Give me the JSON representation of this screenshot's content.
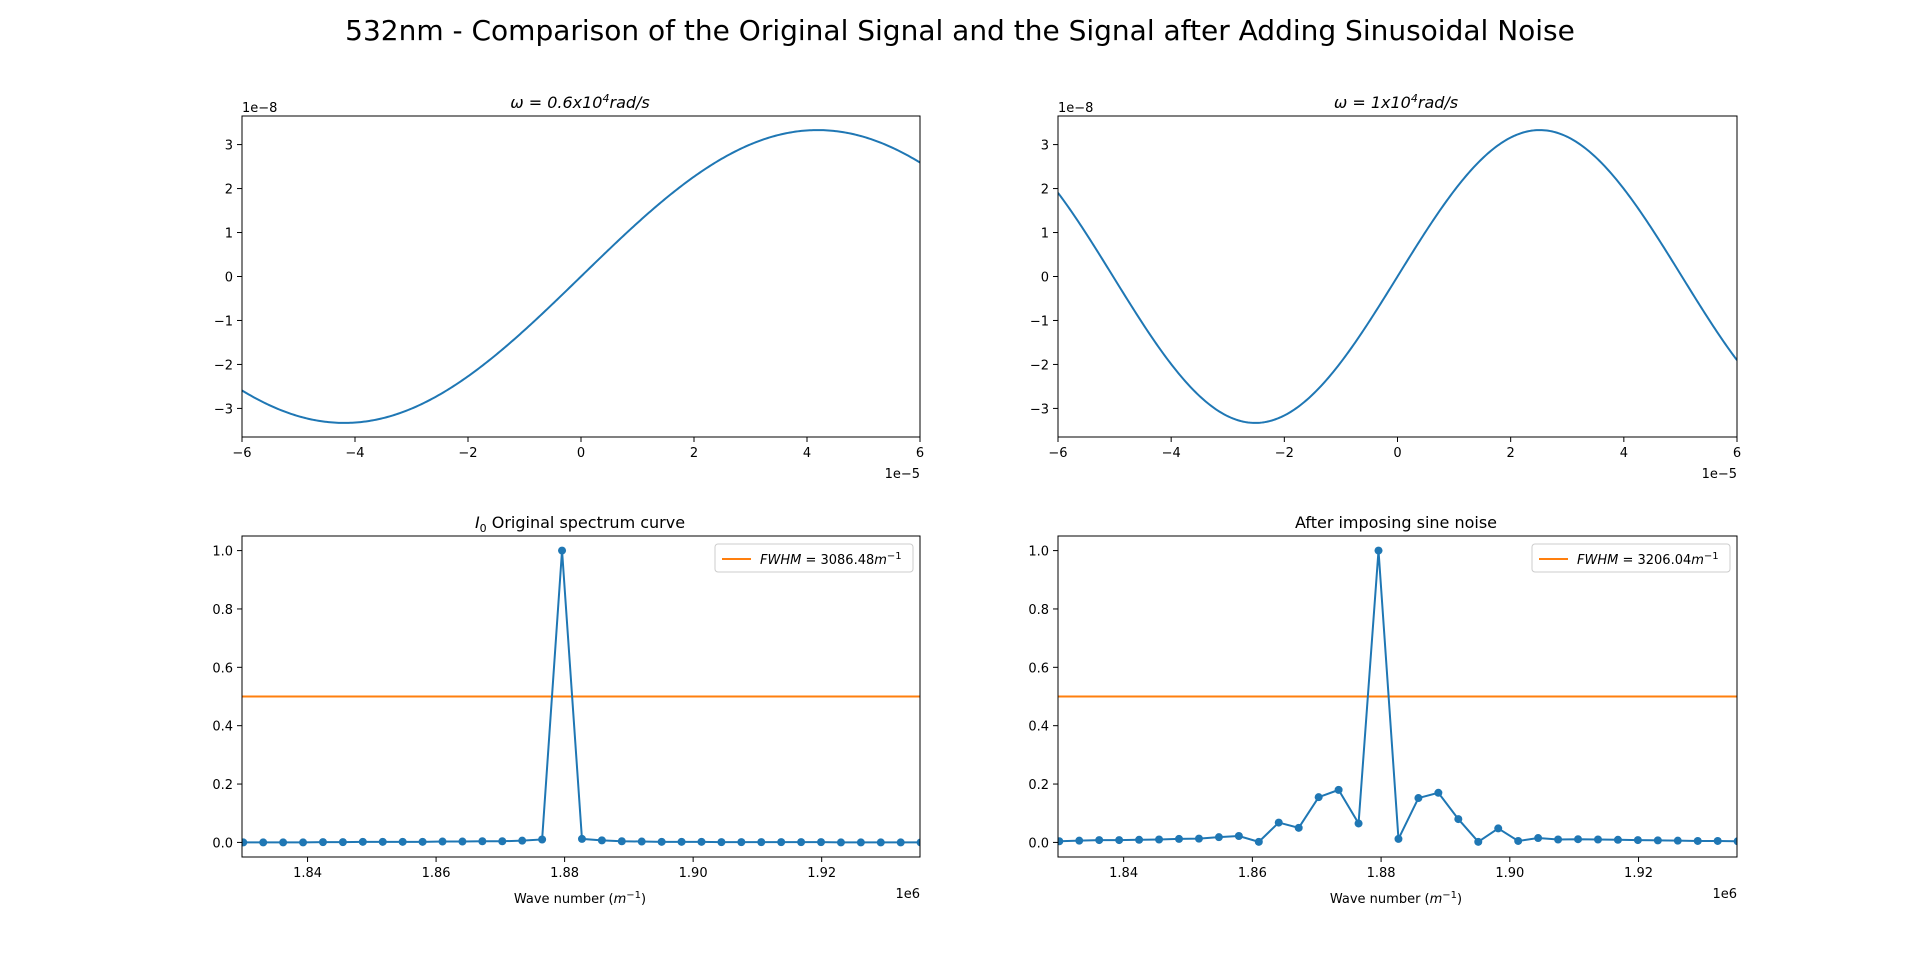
{
  "figure": {
    "title": "532nm - Comparison of the Original Signal and the Signal after Adding Sinusoidal Noise"
  },
  "colors": {
    "signal": "#1f77b4",
    "fwhm": "#ff7f0e",
    "axes": "#000000",
    "legend_border": "#cccccc"
  },
  "chart_data": [
    {
      "type": "line",
      "title_prefix": "ω = 0.6x10",
      "title_sup": "4",
      "title_suffix": "rad/s",
      "x_offset_label": "1e−5",
      "y_offset_label": "1e−8",
      "x_unit_scale": 1e-05,
      "y_unit_scale": 1e-08,
      "xlim": [
        -6,
        6
      ],
      "ylim": [
        -3.65,
        3.65
      ],
      "x_ticks": [
        -6,
        -4,
        -2,
        0,
        2,
        4,
        6
      ],
      "x_tick_labels": [
        "−6",
        "−4",
        "−2",
        "0",
        "2",
        "4",
        "6"
      ],
      "y_ticks": [
        -3,
        -2,
        -1,
        0,
        1,
        2,
        3
      ],
      "y_tick_labels": [
        "−3",
        "−2",
        "−1",
        "0",
        "1",
        "2",
        "3"
      ],
      "curve": {
        "function": "sine",
        "amplitude": 3.33,
        "omega": 0.375
      },
      "x": [
        -6,
        -5,
        -4.2,
        -3,
        -2,
        -1,
        0,
        1,
        2,
        3,
        4.2,
        5,
        6
      ],
      "y": [
        -2.59,
        -3.15,
        -3.33,
        -3.0,
        -2.27,
        -1.22,
        0,
        1.22,
        2.27,
        3.0,
        3.33,
        3.15,
        2.59
      ]
    },
    {
      "type": "line",
      "title_prefix": "ω = 1x10",
      "title_sup": "4",
      "title_suffix": "rad/s",
      "x_offset_label": "1e−5",
      "y_offset_label": "1e−8",
      "x_unit_scale": 1e-05,
      "y_unit_scale": 1e-08,
      "xlim": [
        -6,
        6
      ],
      "ylim": [
        -3.65,
        3.65
      ],
      "x_ticks": [
        -6,
        -4,
        -2,
        0,
        2,
        4,
        6
      ],
      "x_tick_labels": [
        "−6",
        "−4",
        "−2",
        "0",
        "2",
        "4",
        "6"
      ],
      "y_ticks": [
        -3,
        -2,
        -1,
        0,
        1,
        2,
        3
      ],
      "y_tick_labels": [
        "−3",
        "−2",
        "−1",
        "0",
        "1",
        "2",
        "3"
      ],
      "curve": {
        "function": "sine",
        "amplitude": 3.33,
        "omega": 0.625
      },
      "x": [
        -6,
        -5,
        -4,
        -2.5,
        -1,
        0,
        1,
        2.5,
        4,
        5,
        6
      ],
      "y": [
        1.96,
        0.0,
        -2.0,
        -3.33,
        -1.96,
        0,
        1.96,
        3.33,
        2.0,
        0.0,
        -1.96
      ]
    },
    {
      "type": "line",
      "title_italic": "I",
      "title_sub": "0",
      "title_text": " Original spectrum curve",
      "xlabel_text": "Wave number (",
      "xlabel_unit": "m",
      "xlabel_sup": "−1",
      "xlabel_close": ")",
      "x_offset_label": "1e6",
      "x_unit_scale": 1000000.0,
      "xlim": [
        1.8298,
        1.9353
      ],
      "ylim": [
        -0.05,
        1.05
      ],
      "x_ticks": [
        1.84,
        1.86,
        1.88,
        1.9,
        1.92
      ],
      "x_tick_labels": [
        "1.84",
        "1.86",
        "1.88",
        "1.90",
        "1.92"
      ],
      "y_ticks": [
        0.0,
        0.2,
        0.4,
        0.6,
        0.8,
        1.0
      ],
      "y_tick_labels": [
        "0.0",
        "0.2",
        "0.4",
        "0.6",
        "0.8",
        "1.0"
      ],
      "legend": {
        "placement": "upper right",
        "label_prefix": "FWHM",
        "label_value": " = 3086.48",
        "label_unit": "m",
        "label_sup": "−1"
      },
      "fwhm_level": 0.5,
      "x": [
        1.83,
        1.8331,
        1.8362,
        1.8393,
        1.8424,
        1.8455,
        1.8486,
        1.8517,
        1.8548,
        1.8579,
        1.861,
        1.8641,
        1.8672,
        1.8703,
        1.8734,
        1.8765,
        1.8796,
        1.8827,
        1.8858,
        1.8889,
        1.892,
        1.8951,
        1.8982,
        1.9013,
        1.9044,
        1.9075,
        1.9106,
        1.9137,
        1.9168,
        1.9199,
        1.923,
        1.9261,
        1.9292,
        1.9323,
        1.9354
      ],
      "y": [
        0.0,
        0.0,
        0.0,
        0.0,
        0.001,
        0.001,
        0.002,
        0.002,
        0.002,
        0.002,
        0.003,
        0.003,
        0.004,
        0.004,
        0.006,
        0.01,
        1.0,
        0.012,
        0.007,
        0.004,
        0.003,
        0.002,
        0.002,
        0.002,
        0.001,
        0.001,
        0.001,
        0.001,
        0.001,
        0.001,
        0.0,
        0.0,
        0.0,
        0.0,
        0.0
      ]
    },
    {
      "type": "line",
      "title": "After imposing sine noise",
      "xlabel_text": "Wave number (",
      "xlabel_unit": "m",
      "xlabel_sup": "−1",
      "xlabel_close": ")",
      "x_offset_label": "1e6",
      "x_unit_scale": 1000000.0,
      "xlim": [
        1.8298,
        1.9353
      ],
      "ylim": [
        -0.05,
        1.05
      ],
      "x_ticks": [
        1.84,
        1.86,
        1.88,
        1.9,
        1.92
      ],
      "x_tick_labels": [
        "1.84",
        "1.86",
        "1.88",
        "1.90",
        "1.92"
      ],
      "y_ticks": [
        0.0,
        0.2,
        0.4,
        0.6,
        0.8,
        1.0
      ],
      "y_tick_labels": [
        "0.0",
        "0.2",
        "0.4",
        "0.6",
        "0.8",
        "1.0"
      ],
      "legend": {
        "placement": "upper right",
        "label_prefix": "FWHM",
        "label_value": " = 3206.04",
        "label_unit": "m",
        "label_sup": "−1"
      },
      "fwhm_level": 0.5,
      "x": [
        1.83,
        1.8331,
        1.8362,
        1.8393,
        1.8424,
        1.8455,
        1.8486,
        1.8517,
        1.8548,
        1.8579,
        1.861,
        1.8641,
        1.8672,
        1.8703,
        1.8734,
        1.8765,
        1.8796,
        1.8827,
        1.8858,
        1.8889,
        1.892,
        1.8951,
        1.8982,
        1.9013,
        1.9044,
        1.9075,
        1.9106,
        1.9137,
        1.9168,
        1.9199,
        1.923,
        1.9261,
        1.9292,
        1.9323,
        1.9354
      ],
      "y": [
        0.004,
        0.006,
        0.008,
        0.008,
        0.009,
        0.01,
        0.012,
        0.013,
        0.018,
        0.022,
        0.002,
        0.068,
        0.05,
        0.155,
        0.18,
        0.065,
        1.0,
        0.012,
        0.152,
        0.17,
        0.08,
        0.002,
        0.048,
        0.005,
        0.015,
        0.01,
        0.011,
        0.01,
        0.009,
        0.008,
        0.007,
        0.006,
        0.005,
        0.005,
        0.004
      ]
    }
  ]
}
